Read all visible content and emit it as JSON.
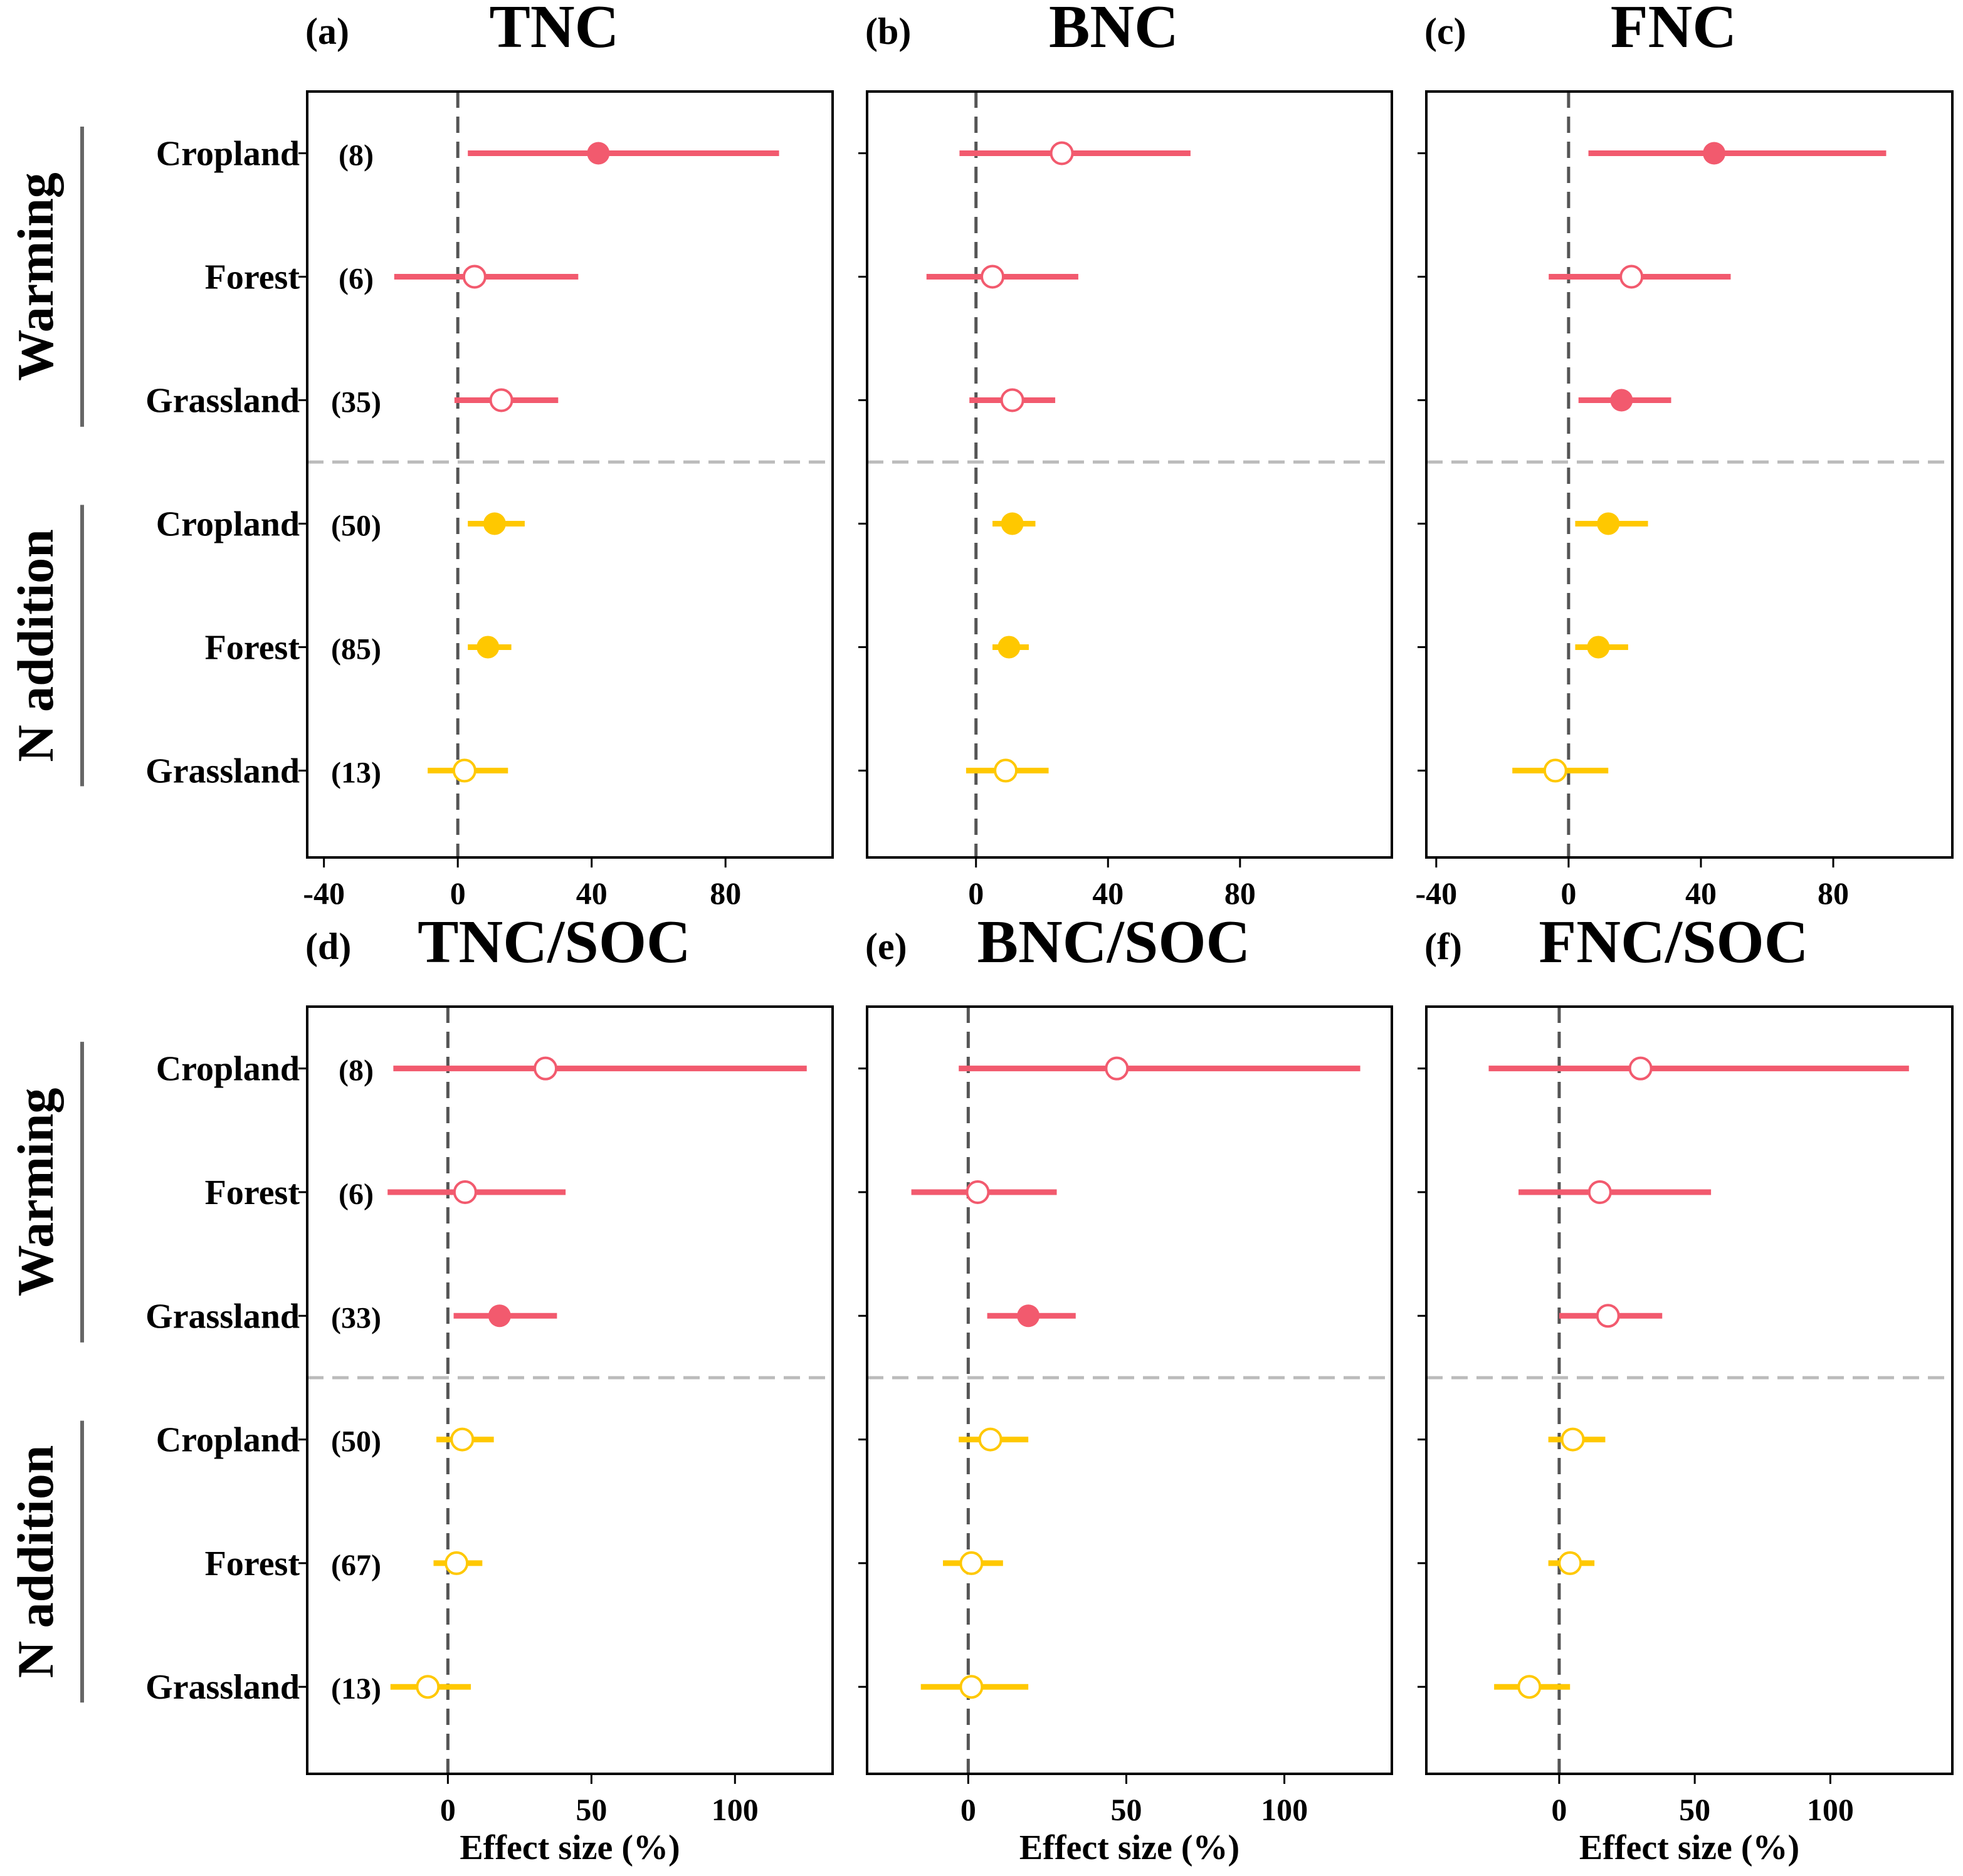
{
  "colors": {
    "warming": "#F25A6E",
    "n_addition": "#FFC800",
    "frame": "#000000",
    "zero_line": "#555555",
    "separator": "#BBBBBB"
  },
  "groups": [
    "Warming",
    "N addition"
  ],
  "row_labels": [
    "Cropland",
    "Forest",
    "Grassland",
    "Cropland",
    "Forest",
    "Grassland"
  ],
  "xlabel": "Effect size (%)",
  "chart_data": [
    {
      "type": "forest",
      "panel": "(a)",
      "title": "TNC",
      "xlim": [
        -45,
        112
      ],
      "xticks": [
        -40,
        0,
        40,
        80
      ],
      "xlabel": "",
      "n": [
        "(8)",
        "(6)",
        "(35)",
        "(50)",
        "(85)",
        "(13)"
      ],
      "rows": [
        {
          "group": "Warming",
          "ecosystem": "Cropland",
          "mean": 42,
          "lo": 3,
          "hi": 96,
          "significant": true
        },
        {
          "group": "Warming",
          "ecosystem": "Forest",
          "mean": 5,
          "lo": -19,
          "hi": 36,
          "significant": false
        },
        {
          "group": "Warming",
          "ecosystem": "Grassland",
          "mean": 13,
          "lo": -1,
          "hi": 30,
          "significant": false
        },
        {
          "group": "N addition",
          "ecosystem": "Cropland",
          "mean": 11,
          "lo": 3,
          "hi": 20,
          "significant": true
        },
        {
          "group": "N addition",
          "ecosystem": "Forest",
          "mean": 9,
          "lo": 3,
          "hi": 16,
          "significant": true
        },
        {
          "group": "N addition",
          "ecosystem": "Grassland",
          "mean": 2,
          "lo": -9,
          "hi": 15,
          "significant": false
        }
      ]
    },
    {
      "type": "forest",
      "panel": "(b)",
      "title": "BNC",
      "xlim": [
        -33,
        126
      ],
      "xticks": [
        0,
        40,
        80
      ],
      "xlabel": "",
      "n": [],
      "rows": [
        {
          "group": "Warming",
          "ecosystem": "Cropland",
          "mean": 26,
          "lo": -5,
          "hi": 65,
          "significant": false
        },
        {
          "group": "Warming",
          "ecosystem": "Forest",
          "mean": 5,
          "lo": -15,
          "hi": 31,
          "significant": false
        },
        {
          "group": "Warming",
          "ecosystem": "Grassland",
          "mean": 11,
          "lo": -2,
          "hi": 24,
          "significant": false
        },
        {
          "group": "N addition",
          "ecosystem": "Cropland",
          "mean": 11,
          "lo": 5,
          "hi": 18,
          "significant": true
        },
        {
          "group": "N addition",
          "ecosystem": "Forest",
          "mean": 10,
          "lo": 5,
          "hi": 16,
          "significant": true
        },
        {
          "group": "N addition",
          "ecosystem": "Grassland",
          "mean": 9,
          "lo": -3,
          "hi": 22,
          "significant": false
        }
      ]
    },
    {
      "type": "forest",
      "panel": "(c)",
      "title": "FNC",
      "xlim": [
        -43,
        116
      ],
      "xticks": [
        -40,
        0,
        40,
        80
      ],
      "xlabel": "",
      "n": [],
      "rows": [
        {
          "group": "Warming",
          "ecosystem": "Cropland",
          "mean": 44,
          "lo": 6,
          "hi": 96,
          "significant": true
        },
        {
          "group": "Warming",
          "ecosystem": "Forest",
          "mean": 19,
          "lo": -6,
          "hi": 49,
          "significant": false
        },
        {
          "group": "Warming",
          "ecosystem": "Grassland",
          "mean": 16,
          "lo": 3,
          "hi": 31,
          "significant": true
        },
        {
          "group": "N addition",
          "ecosystem": "Cropland",
          "mean": 12,
          "lo": 2,
          "hi": 24,
          "significant": true
        },
        {
          "group": "N addition",
          "ecosystem": "Forest",
          "mean": 9,
          "lo": 2,
          "hi": 18,
          "significant": true
        },
        {
          "group": "N addition",
          "ecosystem": "Grassland",
          "mean": -4,
          "lo": -17,
          "hi": 12,
          "significant": false
        }
      ]
    },
    {
      "type": "forest",
      "panel": "(d)",
      "title": "TNC/SOC",
      "xlim": [
        -49,
        134
      ],
      "xticks": [
        0,
        50,
        100
      ],
      "xlabel": "Effect size (%)",
      "n": [
        "(8)",
        "(6)",
        "(33)",
        "(50)",
        "(67)",
        "(13)"
      ],
      "rows": [
        {
          "group": "Warming",
          "ecosystem": "Cropland",
          "mean": 34,
          "lo": -19,
          "hi": 125,
          "significant": false
        },
        {
          "group": "Warming",
          "ecosystem": "Forest",
          "mean": 6,
          "lo": -21,
          "hi": 41,
          "significant": false
        },
        {
          "group": "Warming",
          "ecosystem": "Grassland",
          "mean": 18,
          "lo": 2,
          "hi": 38,
          "significant": true
        },
        {
          "group": "N addition",
          "ecosystem": "Cropland",
          "mean": 5,
          "lo": -4,
          "hi": 16,
          "significant": false
        },
        {
          "group": "N addition",
          "ecosystem": "Forest",
          "mean": 3,
          "lo": -5,
          "hi": 12,
          "significant": false
        },
        {
          "group": "N addition",
          "ecosystem": "Grassland",
          "mean": -7,
          "lo": -20,
          "hi": 8,
          "significant": false
        }
      ]
    },
    {
      "type": "forest",
      "panel": "(e)",
      "title": "BNC/SOC",
      "xlim": [
        -32,
        134
      ],
      "xticks": [
        0,
        50,
        100
      ],
      "xlabel": "Effect size (%)",
      "n": [],
      "rows": [
        {
          "group": "Warming",
          "ecosystem": "Cropland",
          "mean": 47,
          "lo": -3,
          "hi": 124,
          "significant": false
        },
        {
          "group": "Warming",
          "ecosystem": "Forest",
          "mean": 3,
          "lo": -18,
          "hi": 28,
          "significant": false
        },
        {
          "group": "Warming",
          "ecosystem": "Grassland",
          "mean": 19,
          "lo": 6,
          "hi": 34,
          "significant": true
        },
        {
          "group": "N addition",
          "ecosystem": "Cropland",
          "mean": 7,
          "lo": -3,
          "hi": 19,
          "significant": false
        },
        {
          "group": "N addition",
          "ecosystem": "Forest",
          "mean": 1,
          "lo": -8,
          "hi": 11,
          "significant": false
        },
        {
          "group": "N addition",
          "ecosystem": "Grassland",
          "mean": 1,
          "lo": -15,
          "hi": 19,
          "significant": false
        }
      ]
    },
    {
      "type": "forest",
      "panel": "(f)",
      "title": "FNC/SOC",
      "xlim": [
        -49,
        145
      ],
      "xticks": [
        0,
        50,
        100
      ],
      "xlabel": "Effect size (%)",
      "n": [],
      "rows": [
        {
          "group": "Warming",
          "ecosystem": "Cropland",
          "mean": 30,
          "lo": -26,
          "hi": 129,
          "significant": false
        },
        {
          "group": "Warming",
          "ecosystem": "Forest",
          "mean": 15,
          "lo": -15,
          "hi": 56,
          "significant": false
        },
        {
          "group": "Warming",
          "ecosystem": "Grassland",
          "mean": 18,
          "lo": 0,
          "hi": 38,
          "significant": false
        },
        {
          "group": "N addition",
          "ecosystem": "Cropland",
          "mean": 5,
          "lo": -4,
          "hi": 17,
          "significant": false
        },
        {
          "group": "N addition",
          "ecosystem": "Forest",
          "mean": 4,
          "lo": -4,
          "hi": 13,
          "significant": false
        },
        {
          "group": "N addition",
          "ecosystem": "Grassland",
          "mean": -11,
          "lo": -24,
          "hi": 4,
          "significant": false
        }
      ]
    }
  ]
}
